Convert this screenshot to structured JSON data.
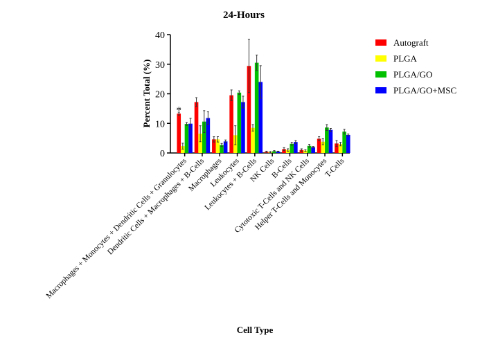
{
  "chart_data": {
    "type": "bar",
    "title": "24-Hours",
    "xlabel": "Cell Type",
    "ylabel": "Percent Total (%)",
    "ylim": [
      0,
      40
    ],
    "yticks": [
      "0",
      "10",
      "20",
      "30",
      "40"
    ],
    "legend_position": "right",
    "categories": [
      "Macrophages + Monocytes + Dendritic Cells + Granulocytes",
      "Dendritic Cells + Macrophages + B-Cells",
      "Macrophages",
      "Leukocytes",
      "Leukocytes + B-Cells",
      "NK Cells",
      "B-Cells",
      "Cytotoxic T-Cells and NK Cells",
      "Helper T-Cells and Monocytes",
      "T-Cells"
    ],
    "series": [
      {
        "name": "Autograft",
        "color": "#ff0000",
        "values": [
          13.3,
          17.2,
          4.6,
          19.5,
          29.4,
          0.4,
          1.3,
          1.0,
          4.8,
          3.2
        ],
        "errors": [
          0.5,
          1.5,
          0.9,
          1.8,
          9.0,
          0.2,
          0.5,
          0.4,
          0.7,
          1.0
        ]
      },
      {
        "name": "PLGA",
        "color": "#ffff00",
        "values": [
          2.3,
          6.5,
          4.6,
          6.0,
          8.5,
          0.3,
          1.0,
          0.8,
          3.8,
          3.0
        ],
        "errors": [
          1.0,
          2.7,
          0.9,
          3.2,
          1.1,
          0.2,
          0.4,
          0.3,
          1.0,
          0.6
        ]
      },
      {
        "name": "PLGA/GO",
        "color": "#00c000",
        "values": [
          9.8,
          10.6,
          2.7,
          20.4,
          30.5,
          0.6,
          3.1,
          2.4,
          8.6,
          7.2
        ],
        "errors": [
          0.5,
          3.7,
          0.5,
          0.6,
          2.6,
          0.2,
          0.5,
          0.5,
          1.0,
          0.8
        ]
      },
      {
        "name": "PLGA/GO+MSC",
        "color": "#0000ff",
        "values": [
          9.9,
          11.8,
          3.9,
          17.2,
          24.0,
          0.5,
          3.7,
          2.0,
          7.8,
          6.1
        ],
        "errors": [
          1.8,
          2.1,
          0.5,
          2.0,
          5.5,
          0.1,
          0.5,
          0.2,
          0.5,
          0.3
        ]
      }
    ],
    "annotations": [
      {
        "category": "Macrophages + Monocytes + Dendritic Cells + Granulocytes",
        "series": "Autograft",
        "text": "*"
      }
    ]
  }
}
